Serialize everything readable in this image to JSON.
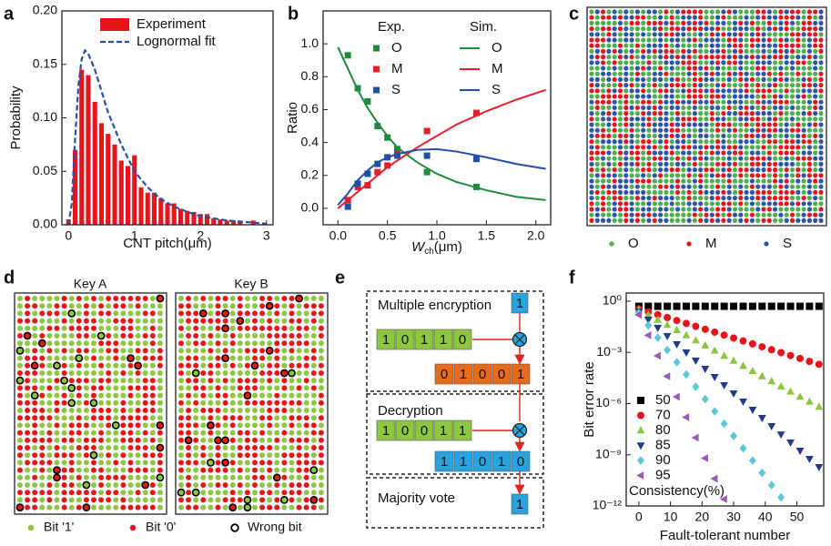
{
  "chart_data": [
    {
      "type": "histogram",
      "label": "a",
      "x_label": "CNT pitch(μm)",
      "y_label": "Probability",
      "name": "Experiment",
      "color": "#e8141c",
      "bins": [
        -0.05,
        0.05,
        0.15,
        0.25,
        0.35,
        0.45,
        0.55,
        0.65,
        0.75,
        0.85,
        0.95,
        1.05,
        1.15,
        1.25,
        1.35,
        1.45,
        1.55,
        1.65,
        1.75,
        1.85,
        1.95,
        2.05,
        2.15,
        2.25,
        2.35,
        2.45,
        2.55,
        2.65,
        2.75,
        2.85
      ],
      "values": [
        0.005,
        0.07,
        0.145,
        0.14,
        0.115,
        0.095,
        0.085,
        0.075,
        0.06,
        0.055,
        0.065,
        0.035,
        0.03,
        0.03,
        0.025,
        0.02,
        0.02,
        0.015,
        0.013,
        0.012,
        0.01,
        0.01,
        0.006,
        0.005,
        0.004,
        0.004,
        0.003,
        0,
        0.004
      ],
      "fit": {
        "name": "Lognormal fit",
        "color": "#2a4fa3",
        "x": [
          0,
          0.05,
          0.1,
          0.15,
          0.2,
          0.25,
          0.3,
          0.4,
          0.5,
          0.6,
          0.7,
          0.8,
          1.0,
          1.2,
          1.4,
          1.6,
          1.8,
          2.0,
          2.4,
          2.8,
          3.0
        ],
        "values": [
          0,
          0.02,
          0.08,
          0.13,
          0.155,
          0.163,
          0.16,
          0.145,
          0.125,
          0.105,
          0.09,
          0.075,
          0.05,
          0.035,
          0.024,
          0.017,
          0.012,
          0.008,
          0.004,
          0.002,
          0.001
        ]
      },
      "xlim": [
        -0.1,
        3.1
      ],
      "ylim": [
        0,
        0.2
      ],
      "xticks": [
        0,
        1,
        2,
        3
      ],
      "yticks": [
        {
          "value": 0,
          "label": "0.00"
        },
        {
          "value": 0.05,
          "label": "0.05"
        },
        {
          "value": 0.1,
          "label": "0.10"
        },
        {
          "value": 0.15,
          "label": "0.15"
        },
        {
          "value": 0.2,
          "label": "0.20"
        }
      ]
    },
    {
      "type": "line",
      "label": "b",
      "x_label": {
        "main": "W",
        "sub": "ch",
        "unit": "(μm)"
      },
      "y_label": "Ratio",
      "legend_titles": [
        "Exp.",
        "Sim."
      ],
      "series": [
        {
          "name": "O",
          "color": "#1e8c3a",
          "mode": "markers",
          "x": [
            0.1,
            0.2,
            0.3,
            0.4,
            0.5,
            0.6,
            0.9,
            1.4
          ],
          "values": [
            0.93,
            0.73,
            0.65,
            0.5,
            0.43,
            0.36,
            0.22,
            0.13
          ]
        },
        {
          "name": "M",
          "color": "#e5202a",
          "mode": "markers",
          "x": [
            0.1,
            0.2,
            0.3,
            0.4,
            0.5,
            0.6,
            0.9,
            1.4
          ],
          "values": [
            0.05,
            0.13,
            0.14,
            0.22,
            0.26,
            0.33,
            0.47,
            0.58
          ]
        },
        {
          "name": "S",
          "color": "#2050a8",
          "mode": "markers",
          "x": [
            0.1,
            0.2,
            0.3,
            0.4,
            0.5,
            0.6,
            0.9,
            1.4
          ],
          "values": [
            0.01,
            0.15,
            0.21,
            0.27,
            0.31,
            0.32,
            0.32,
            0.3
          ]
        },
        {
          "name": "O",
          "color": "#1e8c3a",
          "mode": "line",
          "x": [
            0,
            0.1,
            0.2,
            0.3,
            0.4,
            0.5,
            0.6,
            0.8,
            1.0,
            1.2,
            1.5,
            1.8,
            2.1
          ],
          "values": [
            0.98,
            0.85,
            0.72,
            0.61,
            0.52,
            0.44,
            0.37,
            0.28,
            0.21,
            0.16,
            0.11,
            0.07,
            0.05
          ]
        },
        {
          "name": "M",
          "color": "#e5202a",
          "mode": "line",
          "x": [
            0,
            0.1,
            0.2,
            0.3,
            0.4,
            0.5,
            0.6,
            0.8,
            1.0,
            1.2,
            1.5,
            1.8,
            2.1
          ],
          "values": [
            0,
            0.05,
            0.1,
            0.15,
            0.2,
            0.25,
            0.29,
            0.37,
            0.44,
            0.51,
            0.59,
            0.66,
            0.72
          ]
        },
        {
          "name": "S",
          "color": "#2050a8",
          "mode": "line",
          "x": [
            0,
            0.1,
            0.2,
            0.3,
            0.4,
            0.5,
            0.6,
            0.8,
            1.0,
            1.2,
            1.5,
            1.8,
            2.1
          ],
          "values": [
            0.02,
            0.09,
            0.17,
            0.23,
            0.28,
            0.31,
            0.33,
            0.355,
            0.36,
            0.345,
            0.31,
            0.27,
            0.24
          ]
        }
      ],
      "xlim": [
        -0.15,
        2.15
      ],
      "ylim": [
        -0.1,
        1.2
      ],
      "xticks": [
        {
          "value": 0,
          "label": "0.0"
        },
        0.5,
        {
          "value": 1,
          "label": "1.0"
        },
        1.5,
        {
          "value": 2,
          "label": "2.0"
        }
      ],
      "yticks": [
        {
          "value": 0,
          "label": "0.0"
        },
        0.2,
        0.4,
        0.6,
        0.8,
        {
          "value": 1,
          "label": "1.0"
        }
      ]
    },
    {
      "type": "scatter",
      "label": "f",
      "x_label": "Fault-tolerant number",
      "y_label": "Bit error rate",
      "log_y": true,
      "legend_title": "Consistency(%)",
      "series": [
        {
          "name": "50",
          "color": "#000000",
          "marker": "square",
          "x": [
            0,
            3,
            6,
            9,
            12,
            15,
            18,
            21,
            24,
            27,
            30,
            33,
            36,
            39,
            42,
            45,
            48,
            51,
            54,
            57
          ],
          "values": [
            0.5,
            0.5,
            0.5,
            0.5,
            0.5,
            0.5,
            0.5,
            0.5,
            0.5,
            0.5,
            0.5,
            0.5,
            0.5,
            0.5,
            0.5,
            0.5,
            0.5,
            0.5,
            0.5,
            0.5
          ]
        },
        {
          "name": "70",
          "color": "#e8141c",
          "marker": "circle",
          "x": [
            0,
            3,
            6,
            9,
            12,
            15,
            18,
            21,
            24,
            27,
            30,
            33,
            36,
            39,
            42,
            45,
            48,
            51,
            54,
            57
          ],
          "values": [
            0.355,
            0.239,
            0.161,
            0.109,
            0.0735,
            0.0495,
            0.0334,
            0.0225,
            0.0152,
            0.0103,
            0.00692,
            0.00467,
            0.00315,
            0.00212,
            0.00143,
            0.000966,
            0.000652,
            0.00044,
            0.000296,
            0.0002
          ]
        },
        {
          "name": "80",
          "color": "#8cc63f",
          "marker": "triangle-up",
          "x": [
            0,
            3,
            6,
            9,
            12,
            15,
            18,
            21,
            24,
            27,
            30,
            33,
            36,
            39,
            42,
            45,
            48,
            51,
            54,
            57
          ],
          "values": [
            0.316,
            0.158,
            0.0794,
            0.0398,
            0.02,
            0.01,
            0.005,
            0.00251,
            0.00126,
            0.000631,
            0.000316,
            0.000158,
            7.94e-05,
            3.98e-05,
            2e-05,
            1e-05,
            5e-06,
            2.51e-06,
            1.26e-06,
            6.31e-07
          ]
        },
        {
          "name": "85",
          "color": "#1f3c8c",
          "marker": "triangle-down",
          "x": [
            0,
            3,
            6,
            9,
            12,
            15,
            18,
            21,
            24,
            27,
            30,
            33,
            36,
            39,
            42,
            45,
            48,
            51,
            54,
            57
          ],
          "values": [
            0.251,
            0.0832,
            0.0275,
            0.00912,
            0.00302,
            0.001,
            0.000331,
            0.00011,
            3.63e-05,
            1.2e-05,
            3.98e-06,
            1.32e-06,
            4.37e-07,
            1.45e-07,
            4.79e-08,
            1.58e-08,
            5.25e-09,
            1.74e-09,
            5.75e-10,
            1.91e-10
          ]
        },
        {
          "name": "90",
          "color": "#5bc8d8",
          "marker": "diamond",
          "x": [
            0,
            3,
            6,
            9,
            12,
            15,
            18,
            21,
            24,
            27,
            30,
            33,
            36,
            39,
            42,
            45
          ],
          "values": [
            0.2,
            0.038,
            0.00724,
            0.00138,
            0.000263,
            5.01e-05,
            9.55e-06,
            1.82e-06,
            3.47e-07,
            6.61e-08,
            1.26e-08,
            2.4e-09,
            4.57e-10,
            8.71e-11,
            1.66e-11,
            3.16e-12
          ]
        },
        {
          "name": "95",
          "color": "#a05cb4",
          "marker": "triangle-left",
          "x": [
            0,
            3,
            6,
            9,
            12,
            15,
            18,
            21,
            24,
            27
          ],
          "values": [
            0.158,
            0.01,
            0.000631,
            3.98e-05,
            2.51e-06,
            1.58e-07,
            1e-08,
            6.31e-10,
            3.98e-11,
            2.51e-12
          ]
        }
      ],
      "xlim": [
        -4,
        58.5
      ],
      "ylim": [
        1e-12,
        3
      ],
      "xticks": [
        0,
        10,
        20,
        30,
        40,
        50
      ],
      "yticks": [
        {
          "value": 1,
          "label": "10⁰"
        },
        {
          "value": 0.001,
          "label": "10⁻³"
        },
        {
          "value": 1e-06,
          "label": "10⁻⁶"
        },
        {
          "value": 1e-09,
          "label": "10⁻⁹"
        },
        {
          "value": 1e-12,
          "label": "10⁻¹²"
        }
      ]
    }
  ],
  "pattern_c": {
    "label": "c",
    "legend": [
      {
        "name": "O",
        "color": "#4cae4c"
      },
      {
        "name": "M",
        "color": "#e8141c"
      },
      {
        "name": "S",
        "color": "#2c54a8"
      }
    ]
  },
  "keys_d": {
    "label": "d",
    "panels": [
      "Key A",
      "Key B"
    ],
    "legend": [
      {
        "name": "Bit '1'",
        "color": "#8dc63f"
      },
      {
        "name": "Bit '0'",
        "color": "#e8141c"
      },
      {
        "name": "Wrong bit",
        "color": "#000000"
      }
    ]
  },
  "diagram_e": {
    "label": "e",
    "blocks": [
      {
        "title": "Multiple encryption",
        "key": "1",
        "input": [
          "1",
          "0",
          "1",
          "1",
          "0"
        ],
        "output": [
          "0",
          "1",
          "0",
          "0",
          "1"
        ]
      },
      {
        "title": "Decryption",
        "input": [
          "1",
          "0",
          "0",
          "1",
          "1"
        ],
        "output": [
          "1",
          "1",
          "0",
          "1",
          "0"
        ]
      },
      {
        "title": "Majority vote",
        "result": "1"
      }
    ]
  }
}
